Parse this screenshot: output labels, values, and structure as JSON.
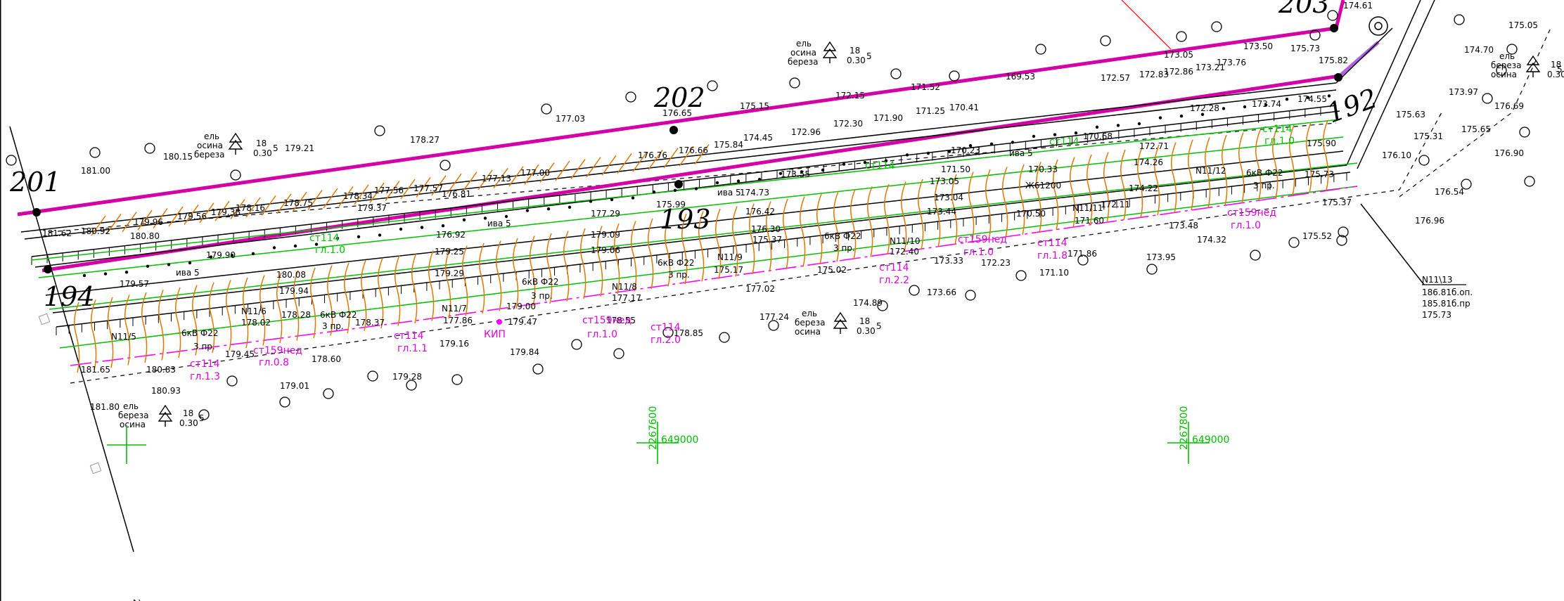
{
  "stations": {
    "st201": "201",
    "st202": "202",
    "st203": "203",
    "st194": "194",
    "st193": "193",
    "st192": "192"
  },
  "elevations": {
    "e181_00": "181.00",
    "e180_15": "180.15",
    "e179_21": "179.21",
    "e178_27": "178.27",
    "e177_03": "177.03",
    "e176_65": "176.65",
    "e175_15": "175.15",
    "e172_15": "172.15",
    "e171_52": "171.52",
    "e169_53": "169.53",
    "e173_05": "173.05",
    "e173_50": "173.50",
    "e174_61": "174.61",
    "e175_05": "175.05",
    "e174_70": "174.70",
    "e173_97": "173.97",
    "e176_69": "176.69",
    "e175_63": "175.63",
    "e175_31": "175.31",
    "e175_65": "175.65",
    "e176_90": "176.90",
    "e176_10": "176.10",
    "e176_54": "176.54",
    "e176_96": "176.96",
    "e175_37": "175.37",
    "e175_52": "175.52",
    "e174_32": "174.32",
    "e173_48": "173.48",
    "e173_95": "173.95",
    "e171_86": "171.86",
    "e171_10": "171.10",
    "e172_23": "172.23",
    "e173_33": "173.33",
    "e173_66": "173.66",
    "e174_89": "174.89",
    "e175_02": "175.02",
    "e177_02": "177.02",
    "e177_24": "177.24",
    "e178_85": "178.85",
    "e178_55": "178.55",
    "e179_47": "179.47",
    "e179_84": "179.84",
    "e179_16": "179.16",
    "e179_28": "179.28",
    "e179_01": "179.01",
    "e178_60": "178.60",
    "e179_45": "179.45",
    "e180_83": "180.83",
    "e180_93": "180.93",
    "e181_65": "181.65",
    "e181_80": "181.80",
    "e178_37": "178.37",
    "e178_02": "178.02",
    "e179_94": "179.94",
    "e179_29": "179.29",
    "e179_25": "179.25",
    "e180_08": "180.08",
    "e179_57": "179.57",
    "e179_90": "179.90",
    "e179_96": "179.96",
    "e178_75": "178.75",
    "e175_99": "175.99",
    "e176_76": "176.76",
    "e176_66": "176.66",
    "e175_84": "175.84",
    "e174_45": "174.45",
    "e172_96": "172.96",
    "e172_30": "172.30",
    "e171_90": "171.90",
    "e171_25": "171.25",
    "e170_41": "170.41",
    "e170_23": "170.23",
    "e170_68": "170.68",
    "e172_28": "172.28",
    "e173_74": "173.74",
    "e174_55": "174.55",
    "e172_71": "172.71",
    "e174_26": "174.26",
    "e174_22": "174.22",
    "e172_11": "172.11",
    "e171_60": "171.60",
    "e170_50": "170.50",
    "e170_33": "170.33",
    "e173_04": "173.04",
    "e173_44": "173.44",
    "e173_05b": "173.05",
    "e171_50": "171.50",
    "e173_55": "173.55",
    "e174_73": "174.73",
    "e176_42": "176.42",
    "e176_30": "176.30",
    "e175_37b": "175.37",
    "e175_17": "175.17",
    "e177_17": "177.17",
    "e177_86": "177.86",
    "e178_28": "178.28",
    "e179_06": "179.06",
    "e179_09": "179.09",
    "e177_29": "177.29",
    "e176_92": "176.92",
    "e177_00": "177.00",
    "e177_13": "177.13",
    "e176_81": "176.81",
    "e177_57": "177.57",
    "e177_56": "177.56",
    "e178_34": "178.34",
    "e179_37": "179.37",
    "e178_16": "178.16",
    "e179_38": "179.38",
    "e179_56": "179.56",
    "e180_80": "180.80",
    "e180_92": "180.92",
    "e181_62": "181.62",
    "e179_00": "179.00",
    "e172_40": "172.40",
    "e172_57": "172.57",
    "e172_83": "172.83",
    "e172_86": "172.86",
    "e173_21": "173.21",
    "e173_76": "173.76",
    "e175_73": "175.73",
    "e175_82": "175.82",
    "e175_90": "175.90",
    "e175_73b": "175.73"
  },
  "tree_notes": {
    "t1_species": [
      "ель",
      "осина",
      "береза"
    ],
    "t1_val": "18",
    "t1_sub": "0.30",
    "t1_n": "5",
    "t2_species": [
      "ель",
      "осина",
      "береза"
    ],
    "t2_val": "18",
    "t2_sub": "0.30",
    "t2_n": "5",
    "t3_species": [
      "ель",
      "береза",
      "осина"
    ],
    "t3_val": "18",
    "t3_sub": "0.30",
    "t3_n": "5",
    "t4_species": [
      "ель",
      "береза",
      "осина"
    ],
    "t4_val": "18",
    "t4_sub": "0.30",
    "t4_n": "5",
    "t5_species": [
      "ель",
      "береза",
      "осина"
    ],
    "t5_val": "18",
    "t5_sub": "0.30",
    "t5_n": "5"
  },
  "cable_labels": {
    "c_n11_5": "N11/5",
    "c_n11_6": "N11/6",
    "c_n11_7": "N11/7",
    "c_n11_8": "N11/8",
    "c_n11_9": "N11/9",
    "c_n11_10": "N11/10",
    "c_n11_11": "N11/11",
    "c_n11_12": "N11/12",
    "c_n11_13": "N11/13",
    "c_6kv": "6кВ Ф22",
    "c_3pr": "3 пр.",
    "c_zh": "Ж61200",
    "c_vl": "ива 5",
    "c_kip": "КИП"
  },
  "pipe_labels": {
    "p_st159": "ст159нед",
    "p_st114": "ст114",
    "p_gl10": "гл.1.0",
    "p_gl13": "гл.1.3",
    "p_gl11": "гл.1.1",
    "p_gl20": "гл.2.0",
    "p_gl22": "гл.2.2",
    "p_gl18": "гл.1.8",
    "p_gl08": "гл.0.8"
  },
  "n11_13_block": {
    "title": "N11\\13",
    "line1": "186.81б.оп.",
    "line2": "185.81б.пр",
    "line3": "175.73"
  },
  "grid_marks": [
    {
      "north": "2267600",
      "east": "649000"
    },
    {
      "north": "2267800",
      "east": "649000"
    }
  ],
  "colors": {
    "road_magenta": "#d400a8",
    "contour": "#e07800",
    "green_line": "#00c000",
    "pipe_magenta": "#ff00ff",
    "ink": "#000000"
  },
  "corner_mark": "2"
}
